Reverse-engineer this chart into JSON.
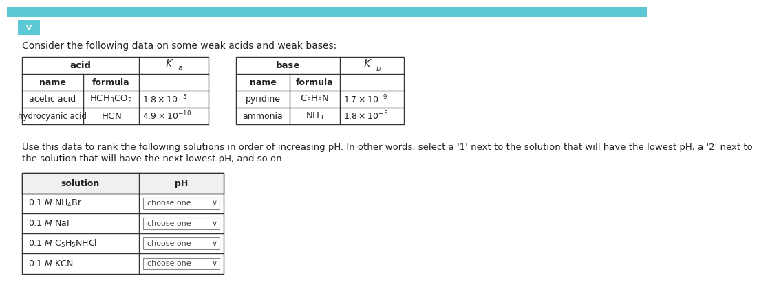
{
  "bg_color": "#ffffff",
  "top_bar_color": "#5bc8d4",
  "title_text": "Consider the following data on some weak acids and weak bases:",
  "instruction_line1": "Use this data to rank the following solutions in order of increasing pH. In other words, select a '1' next to the solution that will have the lowest pH, a '2' next to",
  "instruction_line2": "the solution that will have the next lowest pH, and so on."
}
